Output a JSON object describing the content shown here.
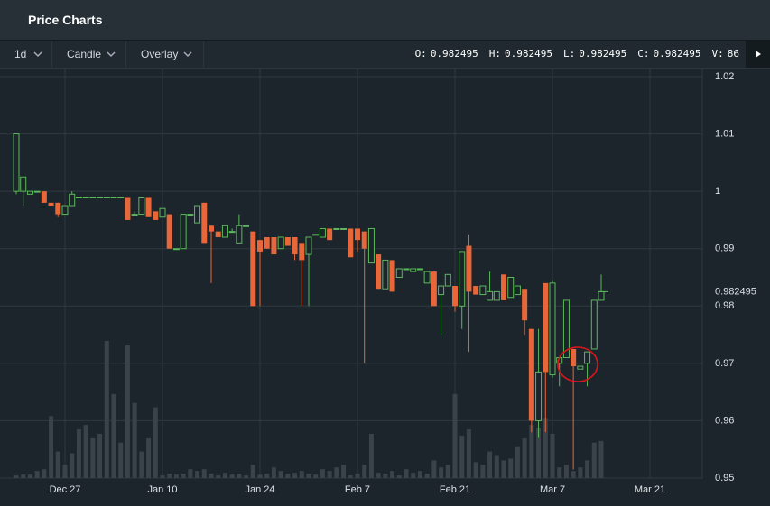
{
  "header": {
    "title": "Price Charts"
  },
  "toolbar": {
    "interval": "1d",
    "chart_type": "Candle",
    "overlay": "Overlay",
    "ohlcv": [
      {
        "label": "O:",
        "value": 0.982495
      },
      {
        "label": "H:",
        "value": 0.982495
      },
      {
        "label": "L:",
        "value": 0.982495
      },
      {
        "label": "C:",
        "value": 0.982495
      },
      {
        "label": "V:",
        "value": 86
      }
    ]
  },
  "chart_data": {
    "type": "candlestick",
    "categories": [
      null,
      null,
      null,
      null,
      null,
      null,
      null,
      null,
      "Dec 27",
      null,
      null,
      null,
      null,
      null,
      null,
      null,
      null,
      null,
      null,
      null,
      null,
      null,
      "Jan 10",
      null,
      null,
      null,
      null,
      null,
      null,
      null,
      null,
      null,
      null,
      null,
      null,
      null,
      "Jan 24",
      null,
      null,
      null,
      null,
      null,
      null,
      null,
      null,
      null,
      null,
      null,
      null,
      null,
      "Feb 7",
      null,
      null,
      null,
      null,
      null,
      null,
      null,
      null,
      null,
      null,
      null,
      null,
      null,
      "Feb 21",
      null,
      null,
      null,
      null,
      null,
      null,
      null,
      null,
      null,
      null,
      null,
      null,
      null,
      "Mar 7",
      null,
      null,
      null,
      null,
      null,
      null,
      null,
      null,
      null,
      null,
      null,
      null,
      null,
      "Mar 21",
      null,
      null,
      null
    ],
    "ohlc": [
      null,
      [
        1.0,
        1.01,
        0.9995,
        1.01
      ],
      [
        1.0,
        1.0025,
        0.9975,
        1.0025
      ],
      [
        0.9995,
        1.0,
        0.9995,
        1.0
      ],
      [
        1.0,
        1.0,
        1.0,
        1.0
      ],
      [
        1.0,
        1.0,
        0.998,
        0.998
      ],
      [
        0.998,
        0.998,
        0.9975,
        0.9975
      ],
      [
        0.998,
        0.998,
        0.9955,
        0.996
      ],
      [
        0.996,
        0.9975,
        0.996,
        0.9975
      ],
      [
        0.9975,
        1.0,
        0.9975,
        0.9995
      ],
      [
        0.999,
        0.999,
        0.999,
        0.999
      ],
      [
        0.999,
        0.999,
        0.999,
        0.999
      ],
      [
        0.999,
        0.999,
        0.999,
        0.999
      ],
      [
        0.999,
        0.999,
        0.999,
        0.999
      ],
      [
        0.999,
        0.999,
        0.999,
        0.999
      ],
      [
        0.999,
        0.999,
        0.999,
        0.999
      ],
      [
        0.999,
        0.999,
        0.999,
        0.999
      ],
      [
        0.999,
        0.999,
        0.995,
        0.995
      ],
      [
        0.996,
        0.9965,
        0.996,
        0.996
      ],
      [
        0.996,
        0.999,
        0.996,
        0.999
      ],
      [
        0.999,
        0.999,
        0.9955,
        0.9955
      ],
      [
        0.9965,
        0.9965,
        0.995,
        0.995
      ],
      [
        0.9955,
        0.997,
        0.9955,
        0.997
      ],
      [
        0.996,
        0.996,
        0.99,
        0.99
      ],
      [
        0.99,
        0.99,
        0.99,
        0.99
      ],
      [
        0.99,
        0.996,
        0.99,
        0.996
      ],
      [
        0.996,
        0.996,
        0.996,
        0.996
      ],
      [
        0.9945,
        0.9975,
        0.9945,
        0.9975
      ],
      [
        0.998,
        0.998,
        0.991,
        0.991
      ],
      [
        0.994,
        0.994,
        0.984,
        0.993
      ],
      [
        0.993,
        0.993,
        0.992,
        0.992
      ],
      [
        0.992,
        0.994,
        0.992,
        0.994
      ],
      [
        0.993,
        0.9935,
        0.993,
        0.993
      ],
      [
        0.991,
        0.996,
        0.991,
        0.994
      ],
      [
        0.994,
        0.994,
        0.994,
        0.994
      ],
      [
        0.993,
        0.993,
        0.98,
        0.98
      ],
      [
        0.9915,
        0.9915,
        0.98,
        0.9895
      ],
      [
        0.992,
        0.992,
        0.99,
        0.99
      ],
      [
        0.992,
        0.992,
        0.989,
        0.989
      ],
      [
        0.99,
        0.992,
        0.99,
        0.992
      ],
      [
        0.992,
        0.992,
        0.9905,
        0.9905
      ],
      [
        0.992,
        0.992,
        0.988,
        0.989
      ],
      [
        0.991,
        0.991,
        0.98,
        0.988
      ],
      [
        0.989,
        0.992,
        0.98,
        0.992
      ],
      [
        0.9925,
        0.9925,
        0.9925,
        0.9925
      ],
      [
        0.992,
        0.9935,
        0.992,
        0.9935
      ],
      [
        0.9935,
        0.9935,
        0.9915,
        0.9915
      ],
      [
        0.9935,
        0.9935,
        0.9935,
        0.9935
      ],
      [
        0.9935,
        0.9935,
        0.9935,
        0.9935
      ],
      [
        0.9935,
        0.9935,
        0.9885,
        0.9885
      ],
      [
        0.9935,
        0.9935,
        0.9895,
        0.9915
      ],
      [
        0.993,
        0.993,
        0.97,
        0.99
      ],
      [
        0.9875,
        0.9935,
        0.9875,
        0.9935
      ],
      [
        0.989,
        0.989,
        0.983,
        0.983
      ],
      [
        0.983,
        0.988,
        0.983,
        0.988
      ],
      [
        0.988,
        0.988,
        0.9825,
        0.9825
      ],
      [
        0.985,
        0.9865,
        0.985,
        0.9865
      ],
      [
        0.9865,
        0.9865,
        0.9865,
        0.9865
      ],
      [
        0.986,
        0.9865,
        0.986,
        0.9865
      ],
      [
        0.9865,
        0.9865,
        0.9865,
        0.9865
      ],
      [
        0.984,
        0.986,
        0.984,
        0.986
      ],
      [
        0.986,
        0.986,
        0.98,
        0.98
      ],
      [
        0.982,
        0.9835,
        0.975,
        0.9835
      ],
      [
        0.9835,
        0.9855,
        0.9835,
        0.9855
      ],
      [
        0.9835,
        0.9835,
        0.979,
        0.98
      ],
      [
        0.98,
        0.9895,
        0.976,
        0.9895
      ],
      [
        0.9905,
        0.9925,
        0.972,
        0.9825
      ],
      [
        0.9835,
        0.9835,
        0.982,
        0.982
      ],
      [
        0.982,
        0.9835,
        0.982,
        0.9835
      ],
      [
        0.981,
        0.986,
        0.981,
        0.9825
      ],
      [
        0.981,
        0.9825,
        0.981,
        0.9825
      ],
      [
        0.9855,
        0.9855,
        0.981,
        0.981
      ],
      [
        0.9815,
        0.985,
        0.9815,
        0.985
      ],
      [
        0.982,
        0.9835,
        0.982,
        0.9835
      ],
      [
        0.983,
        0.983,
        0.975,
        0.9775
      ],
      [
        0.976,
        0.976,
        0.958,
        0.96
      ],
      [
        0.96,
        0.976,
        0.957,
        0.9685
      ],
      [
        0.984,
        0.984,
        0.958,
        0.9685
      ],
      [
        0.968,
        0.9845,
        0.9675,
        0.984
      ],
      [
        0.97,
        0.971,
        0.966,
        0.971
      ],
      [
        0.971,
        0.981,
        0.971,
        0.981
      ],
      [
        0.9725,
        0.9725,
        0.9515,
        0.9695
      ],
      [
        0.969,
        0.9695,
        0.969,
        0.9695
      ],
      [
        0.97,
        0.972,
        0.966,
        0.972
      ],
      [
        0.9725,
        0.981,
        0.9725,
        0.981
      ],
      [
        0.981,
        0.9855,
        0.981,
        0.9825
      ],
      null,
      null,
      null,
      null,
      null,
      null,
      null,
      null,
      null,
      null
    ],
    "volume": [
      null,
      3,
      4,
      4,
      8,
      10,
      70,
      30,
      15,
      28,
      55,
      60,
      45,
      50,
      155,
      95,
      40,
      150,
      85,
      30,
      45,
      80,
      3,
      5,
      4,
      5,
      10,
      8,
      10,
      5,
      3,
      6,
      4,
      5,
      3,
      15,
      4,
      5,
      12,
      8,
      5,
      6,
      8,
      5,
      4,
      10,
      8,
      12,
      15,
      3,
      5,
      15,
      50,
      6,
      5,
      8,
      3,
      10,
      6,
      8,
      5,
      20,
      12,
      15,
      95,
      48,
      55,
      18,
      15,
      30,
      25,
      20,
      22,
      35,
      45,
      60,
      57,
      68,
      50,
      12,
      15,
      8,
      12,
      20,
      40,
      42,
      null,
      null,
      null,
      null,
      null,
      null,
      null,
      null,
      null,
      null
    ],
    "up_color": "#5cb85c",
    "down_color": "#e8673a",
    "volume_color": "#3a434a",
    "ylim": [
      0.95,
      1.02
    ],
    "yticks": [
      0.95,
      0.96,
      0.97,
      0.98,
      0.99,
      1,
      1.01,
      1.02
    ],
    "last_price": 0.982495,
    "grid": true
  }
}
